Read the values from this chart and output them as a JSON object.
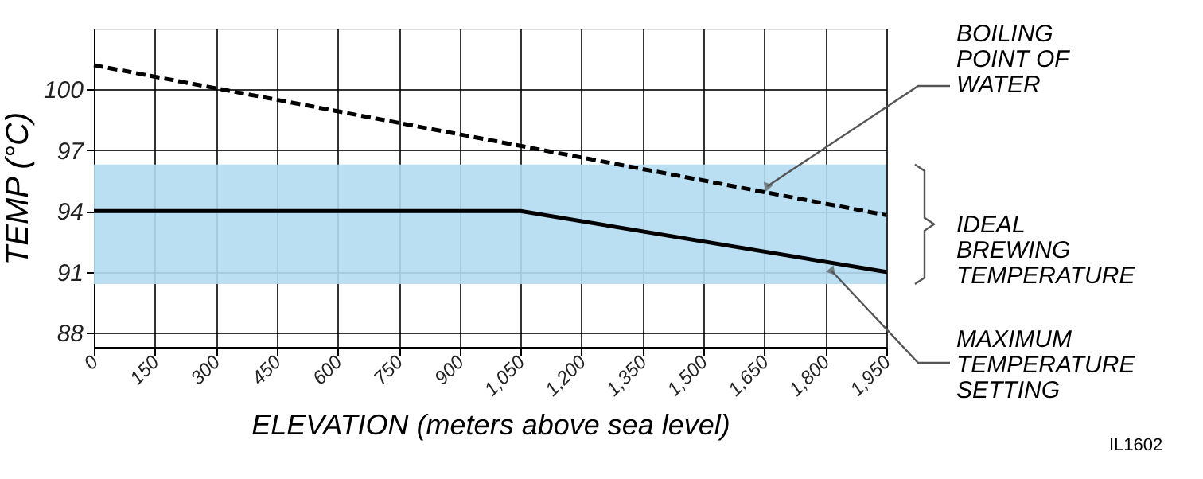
{
  "chart_data": {
    "type": "line",
    "xlabel": "ELEVATION (meters above sea level)",
    "ylabel": "TEMP (°C)",
    "xlim": [
      0,
      1950
    ],
    "xticks": [
      0,
      150,
      300,
      450,
      600,
      750,
      900,
      {
        "value": 1050,
        "label": "1,050"
      },
      {
        "value": 1200,
        "label": "1,200"
      },
      {
        "value": 1350,
        "label": "1,350"
      },
      {
        "value": 1500,
        "label": "1,500"
      },
      {
        "value": 1650,
        "label": "1,650"
      },
      {
        "value": 1800,
        "label": "1,800"
      },
      {
        "value": 1950,
        "label": "1,950"
      }
    ],
    "ylim": [
      87.3,
      103
    ],
    "yticks": [
      88,
      91,
      94,
      97,
      100
    ],
    "grid": true,
    "series": [
      {
        "name": "BOILING\nPOINT OF\nWATER",
        "color": "#000000",
        "line_style": "dashed",
        "x": [
          0,
          1950
        ],
        "values": [
          101.2,
          93.8
        ]
      },
      {
        "name": "MAXIMUM\nTEMPERATURE\nSETTING",
        "color": "#000000",
        "line_style": "solid",
        "x": [
          0,
          1050,
          1950
        ],
        "values": [
          94,
          94,
          91
        ]
      }
    ],
    "bands": [
      {
        "axis": "y",
        "from": 90.4,
        "to": 96.3,
        "label": "IDEAL\nBREWING\nTEMPERATURE",
        "color": "#b3dcf2"
      }
    ],
    "annotations": [
      "IL1602"
    ]
  }
}
